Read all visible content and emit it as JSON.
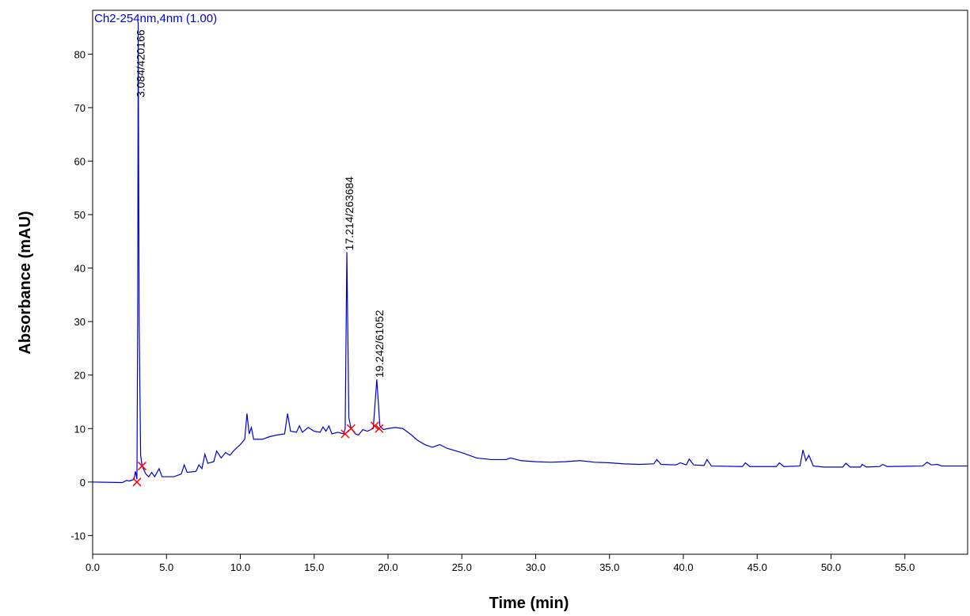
{
  "chart_data": {
    "type": "line",
    "title": "Ch2-254nm,4nm (1.00)",
    "x_label": "Time (min)",
    "y_label": "Absorbance (mAU)",
    "xlim": [
      0,
      59.25
    ],
    "ylim": [
      -13.5,
      88.2
    ],
    "xticks": [
      {
        "value": 0,
        "label": "0.0"
      },
      {
        "value": 5,
        "label": "5.0"
      },
      {
        "value": 10,
        "label": "10.0"
      },
      {
        "value": 15,
        "label": "15.0"
      },
      {
        "value": 20,
        "label": "20.0"
      },
      {
        "value": 25,
        "label": "25.0"
      },
      {
        "value": 30,
        "label": "30.0"
      },
      {
        "value": 35,
        "label": "35.0"
      },
      {
        "value": 40,
        "label": "40.0"
      },
      {
        "value": 45,
        "label": "45.0"
      },
      {
        "value": 50,
        "label": "50.0"
      },
      {
        "value": 55,
        "label": "55.0"
      }
    ],
    "yticks": [
      -10,
      0,
      10,
      20,
      30,
      40,
      50,
      60,
      70,
      80
    ],
    "series": [
      {
        "name": "Ch2-254nm,4nm (1.00)",
        "color": "#0000cc",
        "x": [
          0,
          2.0,
          2.3,
          2.5,
          2.8,
          2.9,
          3.0,
          3.05,
          3.084,
          3.15,
          3.25,
          3.35,
          3.6,
          3.8,
          4.0,
          4.2,
          4.5,
          4.7,
          5.5,
          6.0,
          6.2,
          6.4,
          7.0,
          7.2,
          7.4,
          7.6,
          7.8,
          8.2,
          8.4,
          8.7,
          9.0,
          9.3,
          9.6,
          10.0,
          10.3,
          10.45,
          10.6,
          10.75,
          10.9,
          11.5,
          12.0,
          12.5,
          13.0,
          13.2,
          13.4,
          13.8,
          14.0,
          14.2,
          14.6,
          15.0,
          15.4,
          15.6,
          15.8,
          16.0,
          16.2,
          16.6,
          17.0,
          17.1,
          17.214,
          17.35,
          17.5,
          17.8,
          18.0,
          18.3,
          18.6,
          19.0,
          19.242,
          19.45,
          19.7,
          20.0,
          20.5,
          21.0,
          21.5,
          22,
          22.5,
          23,
          23.5,
          24,
          25,
          26,
          27,
          28,
          28.3,
          29,
          30,
          31,
          32,
          33,
          34,
          35,
          36,
          37,
          38,
          38.2,
          38.5,
          39.5,
          39.8,
          40.2,
          40.4,
          40.7,
          41.4,
          41.6,
          41.9,
          44,
          44.2,
          44.5,
          46.3,
          46.5,
          46.8,
          47.9,
          48.1,
          48.3,
          48.5,
          48.8,
          49.5,
          50.8,
          51,
          51.3,
          52.0,
          52.1,
          52.4,
          53.3,
          53.5,
          53.8,
          56.2,
          56.5,
          56.8,
          57.2,
          57.5,
          59.25
        ],
        "values": [
          0,
          -0.1,
          0.3,
          0.2,
          0.5,
          2,
          0.5,
          30,
          86,
          30,
          5,
          3,
          1.5,
          1.0,
          1.8,
          1,
          2.5,
          1,
          1,
          1.5,
          3.2,
          1.8,
          2,
          3.2,
          2.5,
          5.2,
          3.5,
          3.8,
          5.8,
          4.5,
          5.5,
          5,
          6,
          7,
          8,
          12.8,
          9,
          10.2,
          8,
          8,
          8.5,
          8.8,
          9,
          12.8,
          9.5,
          9.3,
          10.5,
          9.3,
          10.2,
          9.5,
          9.3,
          10.3,
          9.5,
          10.5,
          9,
          9.3,
          9.0,
          10,
          43,
          12,
          10,
          9,
          8.8,
          9.8,
          9.5,
          10,
          19.2,
          10.5,
          9.8,
          10,
          10.2,
          10,
          9,
          7.8,
          7,
          6.5,
          7,
          6.3,
          5.5,
          4.5,
          4.2,
          4.2,
          4.5,
          4,
          3.8,
          3.7,
          3.8,
          4,
          3.7,
          3.6,
          3.4,
          3.3,
          3.4,
          4.2,
          3.3,
          3.2,
          3.6,
          3.2,
          4.3,
          3.2,
          3.1,
          4.2,
          3,
          2.9,
          3.6,
          2.9,
          2.9,
          3.6,
          2.9,
          3,
          6,
          4,
          5,
          3,
          2.8,
          2.8,
          3.5,
          2.8,
          2.8,
          3.3,
          2.8,
          2.9,
          3.3,
          2.9,
          3,
          3.7,
          3.2,
          3.3,
          3.0,
          3.0
        ]
      }
    ],
    "integration_marks": {
      "color": "#ff0000",
      "x": [
        3.0,
        3.35,
        17.1,
        17.5,
        19.1,
        19.4
      ],
      "values": [
        0,
        3,
        9,
        10,
        10.5,
        10
      ]
    },
    "annotations": [
      {
        "text": "3.084/420166",
        "x": 3.084,
        "y": 86
      },
      {
        "text": "17.214/263684",
        "x": 17.214,
        "y": 43
      },
      {
        "text": "19.242/61052",
        "x": 19.242,
        "y": 19.2
      }
    ]
  }
}
